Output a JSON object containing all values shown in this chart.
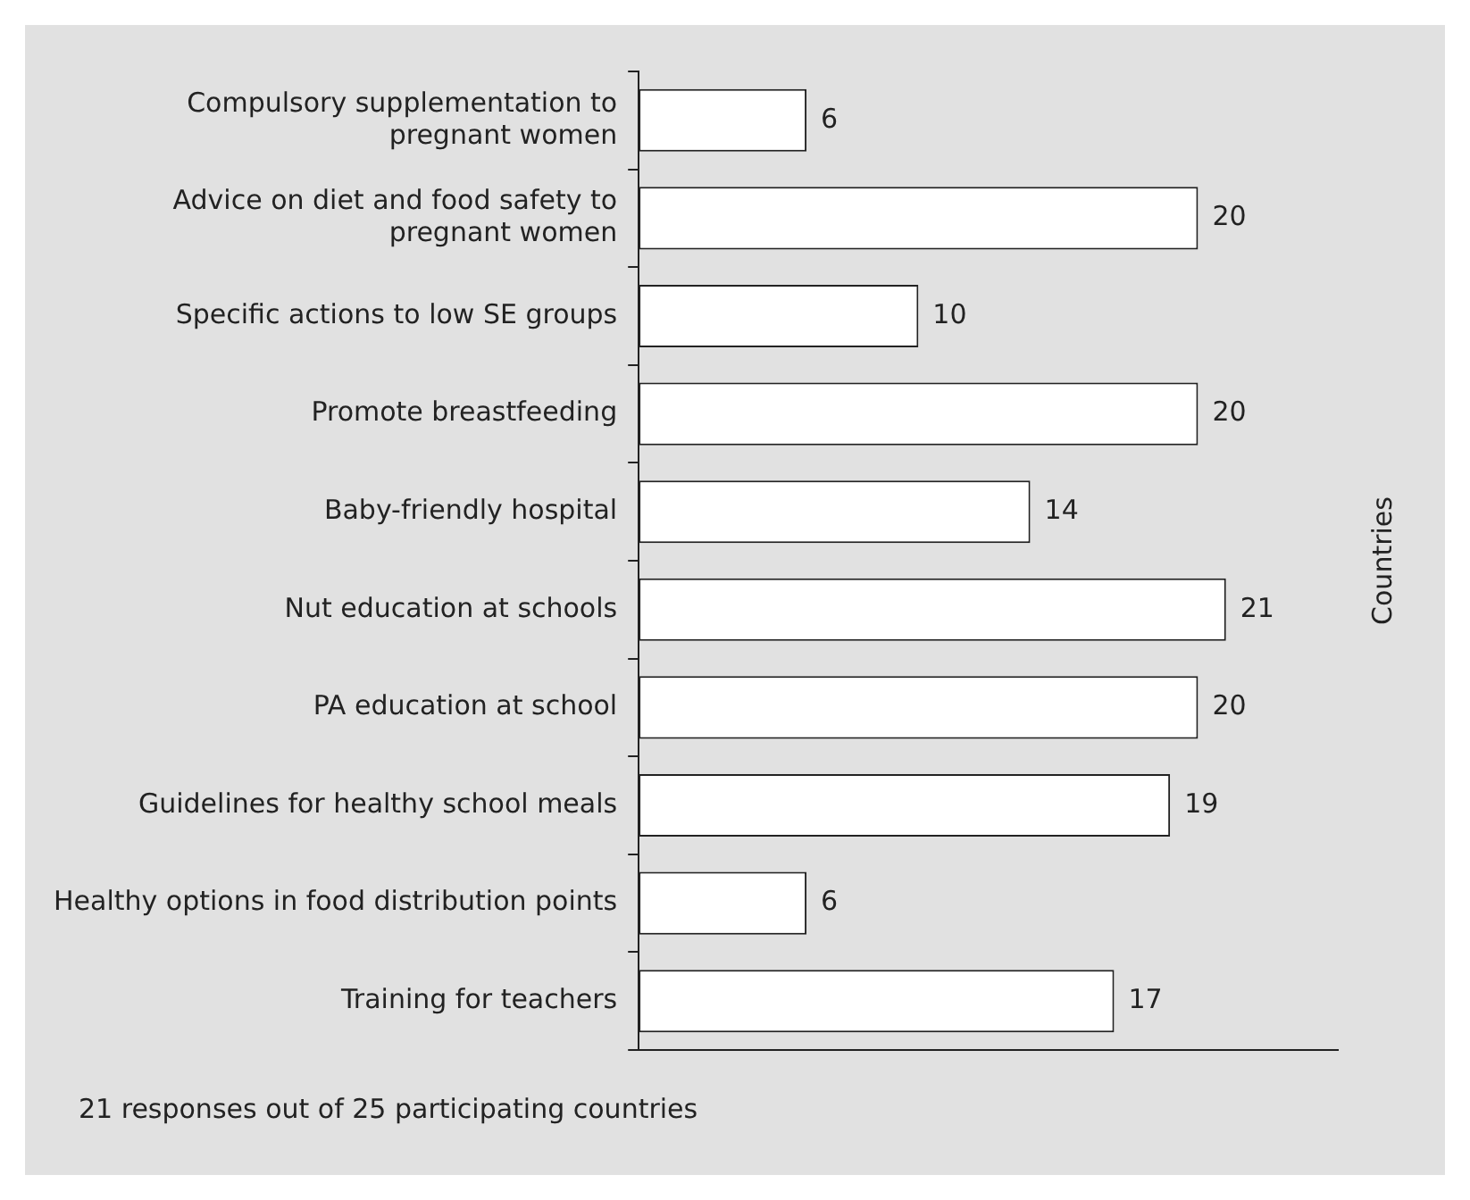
{
  "chart_data": {
    "type": "bar",
    "orientation": "horizontal",
    "categories": [
      "Compulsory supplementation to pregnant women",
      "Advice on diet and food safety to pregnant women",
      "Specific actions to low SE groups",
      "Promote breastfeeding",
      "Baby-friendly hospital",
      "Nut education at schools",
      "PA education at school",
      "Guidelines for healthy school meals",
      "Healthy options in food distribution points",
      "Training for teachers"
    ],
    "values": [
      6,
      20,
      10,
      20,
      14,
      21,
      20,
      19,
      6,
      17
    ],
    "color": "#ffffff",
    "data_labels": true,
    "grid": false,
    "legend": false,
    "tick_labels": "y",
    "annotations": [
      "Countries",
      "21 responses out of 25 participating countries"
    ]
  }
}
